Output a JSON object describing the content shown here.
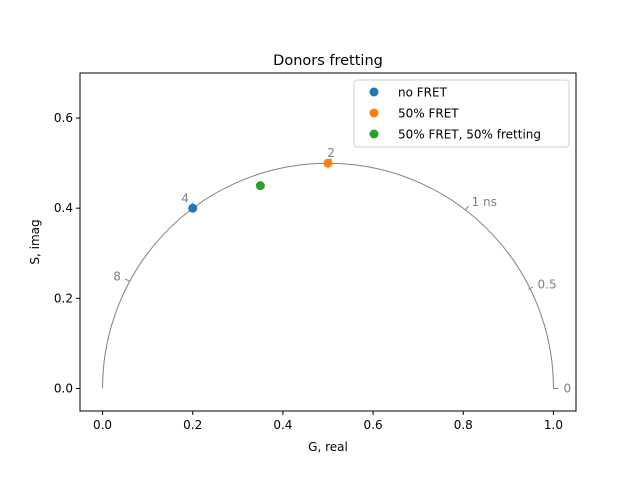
{
  "chart_data": {
    "type": "scatter",
    "title": "Donors fretting",
    "xlabel": "G, real",
    "ylabel": "S, imag",
    "xlim": [
      -0.05,
      1.05
    ],
    "ylim": [
      -0.05,
      0.7
    ],
    "xticks": [
      "0.0",
      "0.2",
      "0.4",
      "0.6",
      "0.8",
      "1.0"
    ],
    "xtick_values": [
      0.0,
      0.2,
      0.4,
      0.6,
      0.8,
      1.0
    ],
    "yticks": [
      "0.0",
      "0.2",
      "0.4",
      "0.6"
    ],
    "ytick_values": [
      0.0,
      0.2,
      0.4,
      0.6
    ],
    "grid": false,
    "legend_position": "top-right",
    "universal_circle": {
      "center": [
        0.5,
        0.0
      ],
      "radius": 0.5,
      "color": "#808080",
      "lifetime_labels": [
        {
          "text": "0",
          "g": 1.0,
          "s": 0.0
        },
        {
          "text": "0.5",
          "g": 0.9448,
          "s": 0.2204
        },
        {
          "text": "1 ns",
          "g": 0.8049,
          "s": 0.3962
        },
        {
          "text": "2",
          "g": 0.5064,
          "s": 0.5
        },
        {
          "text": "4",
          "g": 0.2047,
          "s": 0.4035
        },
        {
          "text": "8",
          "g": 0.0602,
          "s": 0.2377
        }
      ]
    },
    "series": [
      {
        "name": "no FRET",
        "color": "#1f77b4",
        "points": [
          {
            "x": 0.2,
            "y": 0.4
          }
        ]
      },
      {
        "name": "50% FRET",
        "color": "#ff7f0e",
        "points": [
          {
            "x": 0.5,
            "y": 0.5
          }
        ]
      },
      {
        "name": "50% FRET, 50% fretting",
        "color": "#2ca02c",
        "points": [
          {
            "x": 0.35,
            "y": 0.45
          }
        ]
      }
    ]
  }
}
